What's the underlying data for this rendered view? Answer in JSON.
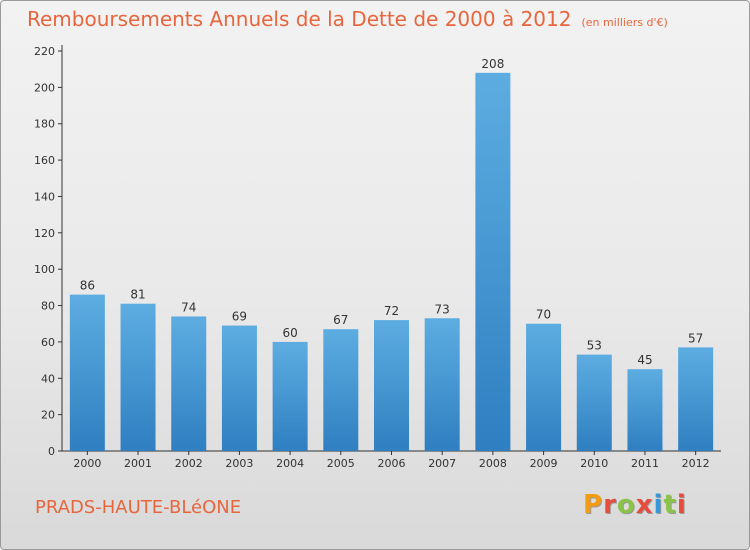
{
  "header": {
    "title": "Remboursements Annuels de la Dette de 2000 à 2012",
    "unit": "(en milliers d'€)"
  },
  "footer": {
    "commune": "PRADS-HAUTE-BLéONE",
    "brand": "Proxiti",
    "brand_colors": [
      "#f39c12",
      "#e74c3c",
      "#8bc34a",
      "#e74c3c",
      "#3498db",
      "#8bc34a",
      "#e74c3c"
    ]
  },
  "colors": {
    "title": "#e8663d",
    "bar_light": "#5dade2",
    "bar_dark": "#2f7fc1",
    "axis": "#333333"
  },
  "chart_data": {
    "type": "bar",
    "title": "Remboursements Annuels de la Dette de 2000 à 2012",
    "subtitle": "(en milliers d'€)",
    "categories": [
      "2000",
      "2001",
      "2002",
      "2003",
      "2004",
      "2005",
      "2006",
      "2007",
      "2008",
      "2009",
      "2010",
      "2011",
      "2012"
    ],
    "values": [
      86,
      81,
      74,
      69,
      60,
      67,
      72,
      73,
      208,
      70,
      53,
      45,
      57
    ],
    "xlabel": "",
    "ylabel": "",
    "ylim": [
      0,
      220
    ],
    "yticks": [
      0,
      20,
      40,
      60,
      80,
      100,
      120,
      140,
      160,
      180,
      200,
      220
    ],
    "grid": false,
    "legend": "none",
    "data_labels": true
  }
}
